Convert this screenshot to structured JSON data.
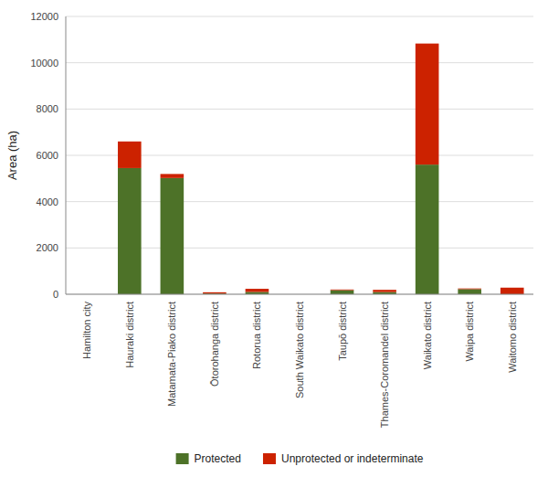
{
  "chart_data": {
    "type": "bar",
    "stacked": true,
    "categories": [
      "Hamilton city",
      "Hauraki district",
      "Matamata-Piako district",
      "Ōtorohanga district",
      "Rotorua district",
      "South Waikato district",
      "Taupō district",
      "Thames-Coromandel district",
      "Waikato district",
      "Waipa district",
      "Waitomo district"
    ],
    "series": [
      {
        "name": "Protected",
        "color": "#4d7228",
        "values": [
          0,
          5450,
          5020,
          30,
          100,
          0,
          175,
          95,
          5600,
          220,
          0
        ]
      },
      {
        "name": "Unprotected or indeterminate",
        "color": "#cc2200",
        "values": [
          0,
          1150,
          175,
          55,
          135,
          0,
          30,
          95,
          5230,
          30,
          285
        ]
      }
    ],
    "ylabel": "Area (ha)",
    "ylim": [
      0,
      12000
    ],
    "yticks": [
      0,
      2000,
      4000,
      6000,
      8000,
      10000,
      12000
    ],
    "grid": true,
    "legend": "bottom"
  }
}
